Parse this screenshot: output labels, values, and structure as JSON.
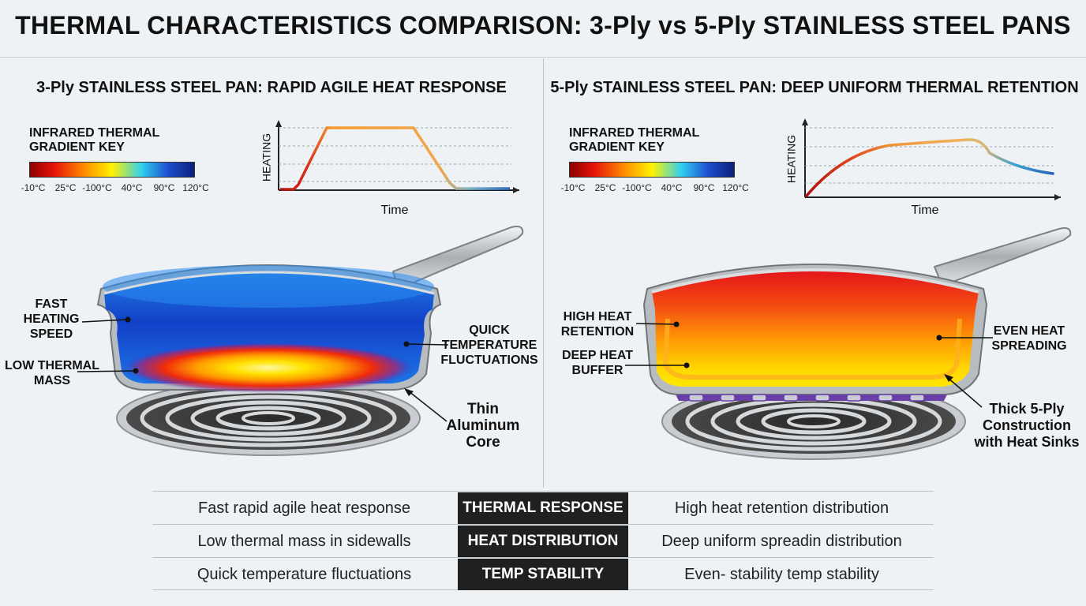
{
  "title": "THERMAL CHARACTERISTICS COMPARISON: 3-Ply vs 5-Ply STAINLESS STEEL PANS",
  "colors": {
    "gradient_key": [
      "#8b0000",
      "#e8140a",
      "#ff8c00",
      "#fff200",
      "#2fd0f0",
      "#1e4fd0",
      "#0a1f7a"
    ],
    "cool_pan": "#1e5fd8",
    "hot_pan": "#f23a10",
    "table_label_bg": "#202020"
  },
  "left": {
    "heading": "3-Ply STAINLESS STEEL PAN: RAPID AGILE HEAT RESPONSE",
    "key": {
      "title_line1": "INFRARED THERMAL",
      "title_line2": "GRADIENT KEY",
      "ticks": [
        "-10°C",
        "25°C",
        "-100°C",
        "40°C",
        "90°C",
        "120°C"
      ]
    },
    "graph": {
      "ylabel": "HEATING",
      "xlabel": "Time"
    },
    "labels": {
      "fast_heating": [
        "FAST",
        "HEATING",
        "SPEED"
      ],
      "low_mass": [
        "LOW THERMAL",
        "MASS"
      ],
      "quick_temp": [
        "QUICK",
        "TEMPERATURE",
        "FLUCTUATIONS"
      ],
      "core": [
        "Thin",
        "Aluminum",
        "Core"
      ]
    }
  },
  "right": {
    "heading": "5-Ply STAINLESS STEEL PAN: DEEP UNIFORM THERMAL RETENTION",
    "key": {
      "title_line1": "INFRARED THERMAL",
      "title_line2": "GRADIENT KEY",
      "ticks": [
        "-10°C",
        "25°C",
        "-100°C",
        "40°C",
        "90°C",
        "120°C"
      ]
    },
    "graph": {
      "ylabel": "HEATING",
      "xlabel": "Time"
    },
    "labels": {
      "high_retention": [
        "HIGH HEAT",
        "RETENTION"
      ],
      "deep_buffer": [
        "DEEP HEAT",
        "BUFFER"
      ],
      "even_spreading": [
        "EVEN HEAT",
        "SPREADING"
      ],
      "construction": [
        "Thick 5-Ply",
        "Construction",
        "with Heat Sinks"
      ]
    }
  },
  "table": {
    "rows": [
      {
        "left": "Fast rapid agile heat response",
        "label": "THERMAL RESPONSE",
        "right": "High heat retention distribution"
      },
      {
        "left": "Low thermal mass in sidewalls",
        "label": "HEAT DISTRIBUTION",
        "right": "Deep uniform spreadin distribution"
      },
      {
        "left": "Quick temperature fluctuations",
        "label": "TEMP STABILITY",
        "right": "Even- stability temp stability"
      }
    ]
  }
}
